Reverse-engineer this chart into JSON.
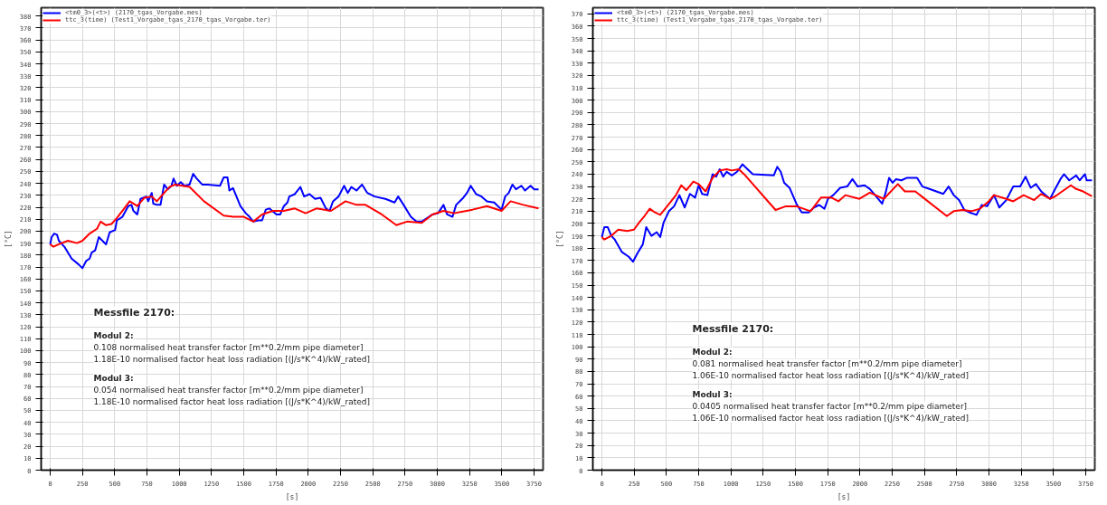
{
  "chart_data": [
    {
      "type": "line",
      "xlabel": "[s]",
      "ylabel": "[°C]",
      "xlim": [
        -70,
        3820
      ],
      "ylim": [
        0,
        387
      ],
      "xticks": [
        0,
        250,
        500,
        750,
        1000,
        1250,
        1500,
        1750,
        2000,
        2250,
        2500,
        2750,
        3000,
        3250,
        3500,
        3750
      ],
      "yticks": [
        0,
        10,
        20,
        30,
        40,
        50,
        60,
        70,
        80,
        90,
        100,
        110,
        120,
        130,
        140,
        150,
        160,
        170,
        180,
        190,
        200,
        210,
        220,
        230,
        240,
        250,
        260,
        270,
        280,
        290,
        300,
        310,
        320,
        330,
        340,
        350,
        360,
        370,
        380
      ],
      "grid": true,
      "legend": "top left",
      "annotations": [
        "Messfile 2170:",
        "Modul 2:",
        "0.108 normalised heat transfer factor [m**0.2/mm pipe diameter]",
        "1.18E-10 normalised factor heat loss radiation [(J/s*K^4)/kW_rated]",
        "Modul 3:",
        "0.054 normalised heat transfer factor [m**0.2/mm pipe diameter]",
        "1.18E-10 normalised factor heat loss radiation [(J/s*K^4)/kW_rated]"
      ],
      "series": [
        {
          "name": "<tm0_3>(<t>) (2170_tgas_Vorgabe.mes)",
          "color": "#0000ff",
          "x": [
            0,
            11,
            31,
            53,
            67,
            110,
            166,
            222,
            250,
            278,
            306,
            321,
            349,
            377,
            405,
            433,
            461,
            503,
            517,
            560,
            605,
            630,
            645,
            675,
            700,
            745,
            760,
            787,
            799,
            827,
            855,
            883,
            911,
            940,
            956,
            982,
            1012,
            1040,
            1080,
            1108,
            1136,
            1178,
            1220,
            1316,
            1345,
            1374,
            1389,
            1417,
            1474,
            1516,
            1545,
            1574,
            1614,
            1642,
            1671,
            1698,
            1754,
            1783,
            1811,
            1839,
            1853,
            1896,
            1939,
            1968,
            2010,
            2053,
            2095,
            2137,
            2165,
            2192,
            2235,
            2278,
            2306,
            2334,
            2374,
            2417,
            2458,
            2514,
            2598,
            2669,
            2697,
            2739,
            2795,
            2838,
            2880,
            2922,
            2963,
            3006,
            3048,
            3076,
            3118,
            3146,
            3202,
            3230,
            3259,
            3301,
            3343,
            3385,
            3441,
            3498,
            3526,
            3554,
            3582,
            3610,
            3652,
            3680,
            3723,
            3751,
            3785
          ],
          "values": [
            189,
            195,
            198,
            197,
            192,
            187,
            177,
            172,
            169,
            175,
            177,
            182,
            184,
            195,
            192,
            189,
            199,
            201,
            209,
            212,
            221,
            222,
            217,
            214,
            227,
            229,
            225,
            232,
            223,
            222,
            222,
            239,
            235,
            238,
            244,
            238,
            241,
            238,
            239,
            248,
            244,
            239,
            239,
            238,
            245,
            245,
            234,
            236,
            221,
            215,
            212,
            208,
            209,
            209,
            218,
            219,
            214,
            214,
            221,
            224,
            229,
            231,
            237,
            229,
            231,
            227,
            228,
            219,
            217,
            225,
            229,
            238,
            232,
            237,
            234,
            239,
            232,
            229,
            227,
            224,
            229,
            222,
            212,
            208,
            208,
            211,
            214,
            215,
            222,
            214,
            212,
            222,
            228,
            232,
            238,
            231,
            229,
            225,
            224,
            218,
            229,
            232,
            239,
            235,
            238,
            234,
            238,
            235,
            235
          ]
        },
        {
          "name": "ttc_3(time) (Test1_Vorgabe_tgas_2170_tgas_Vorgabe.ter)",
          "color": "#ff0000",
          "x": [
            0,
            25,
            67,
            138,
            208,
            250,
            306,
            363,
            391,
            433,
            475,
            517,
            574,
            616,
            675,
            731,
            787,
            827,
            883,
            925,
            968,
            1023,
            1080,
            1192,
            1345,
            1417,
            1501,
            1574,
            1642,
            1726,
            1811,
            1896,
            1979,
            2064,
            2176,
            2289,
            2374,
            2444,
            2570,
            2683,
            2766,
            2880,
            2963,
            3048,
            3132,
            3273,
            3385,
            3498,
            3568,
            3667,
            3785
          ],
          "values": [
            189,
            187,
            189,
            192,
            190,
            192,
            198,
            202,
            208,
            205,
            206,
            211,
            219,
            225,
            221,
            228,
            229,
            225,
            232,
            237,
            239,
            238,
            237,
            225,
            213,
            212,
            212,
            208,
            214,
            217,
            217,
            219,
            215,
            219,
            217,
            225,
            222,
            222,
            214,
            205,
            208,
            207,
            214,
            217,
            215,
            218,
            221,
            217,
            225,
            222,
            219
          ]
        }
      ]
    },
    {
      "type": "line",
      "xlabel": "[s]",
      "ylabel": "[°C]",
      "xlim": [
        -70,
        3820
      ],
      "ylim": [
        0,
        375
      ],
      "xticks": [
        0,
        250,
        500,
        750,
        1000,
        1250,
        1500,
        1750,
        2000,
        2250,
        2500,
        2750,
        3000,
        3250,
        3500,
        3750
      ],
      "yticks": [
        0,
        10,
        20,
        30,
        40,
        50,
        60,
        70,
        80,
        90,
        100,
        110,
        120,
        130,
        140,
        150,
        160,
        170,
        180,
        190,
        200,
        210,
        220,
        230,
        240,
        250,
        260,
        270,
        280,
        290,
        300,
        310,
        320,
        330,
        340,
        350,
        360,
        370
      ],
      "grid": true,
      "legend": "top left",
      "annotations": [
        "Messfile 2170:",
        "Modul 2:",
        "0.081 normalised heat transfer factor [m**0.2/mm pipe diameter]",
        "1.06E-10 normalised factor heat loss radiation [(J/s*K^4)/kW_rated]",
        "Modul 3:",
        "0.0405 normalised heat transfer factor [m**0.2/mm pipe diameter]",
        "1.06E-10 normalised factor heat loss radiation [(J/s*K^4)/kW_rated]"
      ],
      "series": [
        {
          "name": "<tm0_3>(<t>) (2170_tgas_Vorgabe.mes)",
          "color": "#0000ff",
          "x": [
            0,
            19,
            46,
            73,
            100,
            154,
            209,
            241,
            276,
            317,
            344,
            384,
            425,
            452,
            479,
            520,
            560,
            601,
            642,
            682,
            723,
            750,
            777,
            818,
            858,
            886,
            913,
            940,
            967,
            1007,
            1048,
            1089,
            1129,
            1170,
            1332,
            1359,
            1386,
            1413,
            1454,
            1508,
            1549,
            1603,
            1644,
            1684,
            1725,
            1752,
            1793,
            1847,
            1901,
            1942,
            1982,
            2036,
            2077,
            2118,
            2172,
            2199,
            2226,
            2253,
            2280,
            2321,
            2362,
            2402,
            2443,
            2484,
            2538,
            2646,
            2687,
            2727,
            2768,
            2809,
            2849,
            2903,
            2944,
            2985,
            3039,
            3080,
            3134,
            3188,
            3242,
            3283,
            3323,
            3364,
            3405,
            3473,
            3513,
            3554,
            3581,
            3622,
            3676,
            3703,
            3744,
            3757,
            3798
          ],
          "values": [
            189,
            197,
            197,
            190,
            187,
            177,
            173,
            169,
            176,
            183,
            197,
            190,
            193,
            189,
            201,
            210,
            214,
            223,
            213,
            224,
            221,
            231,
            224,
            223,
            240,
            238,
            244,
            238,
            242,
            239,
            242,
            248,
            244,
            240,
            239,
            246,
            242,
            233,
            229,
            216,
            209,
            209,
            213,
            215,
            212,
            220,
            223,
            229,
            230,
            236,
            230,
            231,
            228,
            223,
            216,
            225,
            237,
            233,
            236,
            235,
            237,
            237,
            237,
            230,
            228,
            224,
            230,
            223,
            219,
            211,
            209,
            207,
            215,
            214,
            223,
            213,
            219,
            230,
            230,
            238,
            229,
            232,
            226,
            220,
            228,
            236,
            240,
            235,
            239,
            235,
            240,
            235,
            235
          ]
        },
        {
          "name": "ttc_3(time) (Test1_Vorgabe_tgas_2170_tgas_Vorgabe.ter)",
          "color": "#ff0000",
          "x": [
            0,
            19,
            73,
            127,
            195,
            249,
            290,
            330,
            371,
            411,
            452,
            506,
            574,
            615,
            655,
            709,
            750,
            804,
            858,
            913,
            967,
            1007,
            1061,
            1102,
            1346,
            1427,
            1508,
            1617,
            1698,
            1779,
            1833,
            1887,
            1996,
            2077,
            2185,
            2294,
            2348,
            2429,
            2673,
            2727,
            2795,
            2863,
            2931,
            2998,
            3039,
            3134,
            3188,
            3269,
            3350,
            3405,
            3473,
            3513,
            3567,
            3635,
            3676,
            3730,
            3798
          ],
          "values": [
            189,
            187,
            190,
            195,
            194,
            195,
            201,
            206,
            212,
            209,
            207,
            214,
            223,
            231,
            227,
            234,
            232,
            226,
            237,
            243,
            244,
            243,
            244,
            240,
            211,
            214,
            214,
            210,
            221,
            221,
            218,
            223,
            220,
            225,
            220,
            232,
            226,
            226,
            206,
            210,
            211,
            210,
            212,
            218,
            223,
            220,
            218,
            223,
            219,
            224,
            220,
            222,
            226,
            231,
            228,
            226,
            222
          ]
        }
      ]
    }
  ]
}
